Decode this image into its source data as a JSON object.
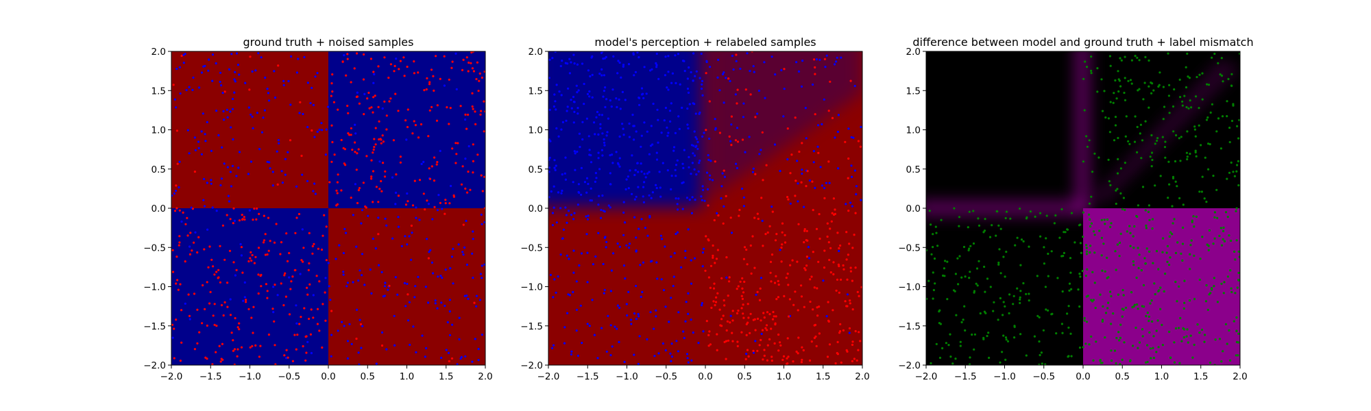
{
  "colors": {
    "blue": "#00008b",
    "red": "#8b0000",
    "black": "#000000",
    "magenta": "#8b008b",
    "point_blue": "#0000ff",
    "point_red": "#ff0000",
    "point_green": "#008000"
  },
  "chart_data": [
    {
      "type": "heatmap",
      "title": "ground truth + noised samples",
      "xlim": [
        -2.0,
        2.0
      ],
      "ylim": [
        -2.0,
        2.0
      ],
      "xticks": [
        "−2.0",
        "−1.5",
        "−1.0",
        "−0.5",
        "0.0",
        "0.5",
        "1.0",
        "1.5",
        "2.0"
      ],
      "yticks": [
        "−2.0",
        "−1.5",
        "−1.0",
        "−0.5",
        "0.0",
        "0.5",
        "1.0",
        "1.5",
        "2.0"
      ],
      "background": "xor quadrants: top-left red, top-right blue, bottom-left blue, bottom-right red",
      "series": [
        {
          "color": "blue",
          "regions": [
            [
              -2,
              0,
              0,
              2
            ],
            [
              0,
              2,
              0,
              2
            ],
            [
              0,
              2,
              -2,
              0
            ],
            [
              -2,
              0,
              -2,
              0
            ]
          ],
          "counts": [
            150,
            30,
            150,
            30
          ]
        },
        {
          "color": "red",
          "regions": [
            [
              0,
              2,
              0,
              2
            ],
            [
              -2,
              0,
              -2,
              0
            ],
            [
              -2,
              0,
              0,
              2
            ],
            [
              0,
              2,
              -2,
              0
            ]
          ],
          "counts": [
            220,
            220,
            15,
            15
          ]
        }
      ],
      "grid": false
    },
    {
      "type": "heatmap",
      "title": "model's perception + relabeled samples",
      "xlim": [
        -2.0,
        2.0
      ],
      "ylim": [
        -2.0,
        2.0
      ],
      "xticks": [
        "−2.0",
        "−1.5",
        "−1.0",
        "−0.5",
        "0.0",
        "0.5",
        "1.0",
        "1.5",
        "2.0"
      ],
      "yticks": [
        "−2.0",
        "−1.5",
        "−1.0",
        "−0.5",
        "0.0",
        "0.5",
        "1.0",
        "1.5",
        "2.0"
      ],
      "background": "top-left blue, rest red, blurred boundaries",
      "series": [
        {
          "color": "blue",
          "regions": [
            [
              -2,
              0,
              0,
              2
            ],
            [
              0,
              2,
              0,
              2
            ],
            [
              -2,
              0,
              -2,
              0
            ],
            [
              0,
              2,
              -2,
              0
            ]
          ],
          "counts": [
            360,
            120,
            180,
            20
          ]
        },
        {
          "color": "red",
          "regions": [
            [
              0,
              2,
              -2,
              0
            ],
            [
              0,
              2,
              0,
              2
            ]
          ],
          "counts": [
            300,
            60
          ]
        }
      ],
      "grid": false
    },
    {
      "type": "heatmap",
      "title": "difference between model and ground truth + label mismatch",
      "xlim": [
        -2.0,
        2.0
      ],
      "ylim": [
        -2.0,
        2.0
      ],
      "xticks": [
        "−2.0",
        "−1.5",
        "−1.0",
        "−0.5",
        "0.0",
        "0.5",
        "1.0",
        "1.5",
        "2.0"
      ],
      "yticks": [
        "−2.0",
        "−1.5",
        "−1.0",
        "−0.5",
        "0.0",
        "0.5",
        "1.0",
        "1.5",
        "2.0"
      ],
      "background": "black where model matches ground truth, magenta where mismatch (bottom-right quadrant), magenta glow near axes",
      "series": [
        {
          "color": "green",
          "regions": [
            [
              0,
              2,
              0,
              2
            ],
            [
              -2,
              0,
              -2,
              0
            ],
            [
              0,
              2,
              -2,
              0
            ]
          ],
          "counts": [
            220,
            220,
            300
          ]
        }
      ],
      "grid": false
    }
  ]
}
